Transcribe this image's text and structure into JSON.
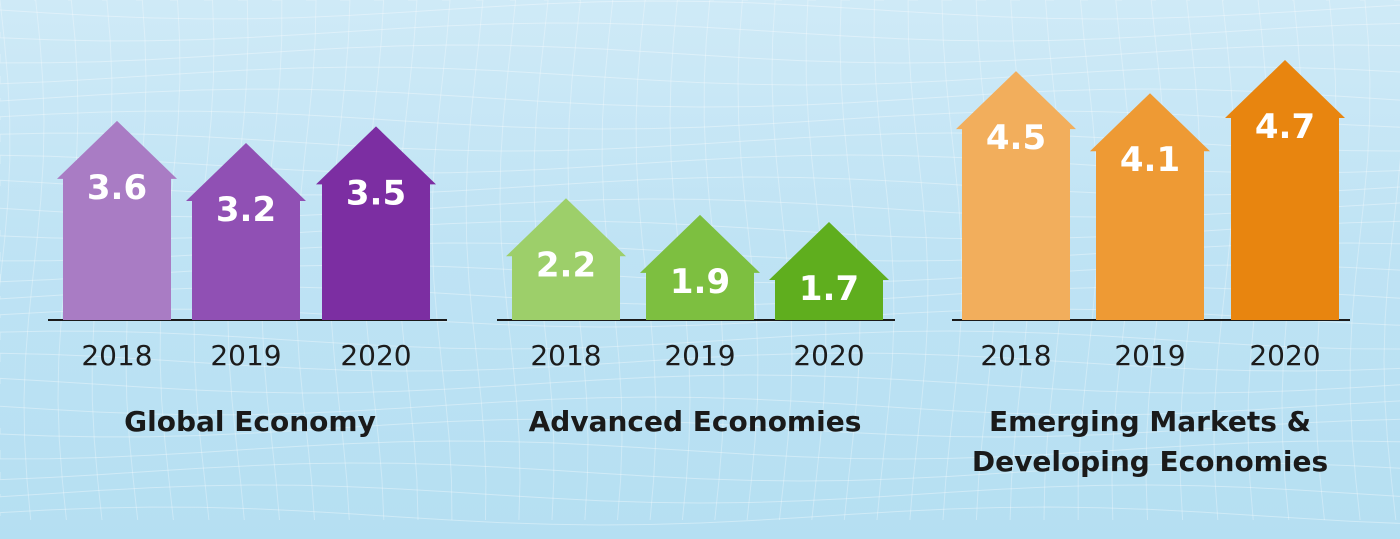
{
  "chart_data": [
    {
      "type": "bar",
      "title": "Global Economy",
      "categories": [
        "2018",
        "2019",
        "2020"
      ],
      "values": [
        3.6,
        3.2,
        3.5
      ],
      "value_labels": [
        "3.6",
        "3.2",
        "3.5"
      ],
      "colors": [
        "#a97cc4",
        "#9050b4",
        "#7c2ea2"
      ]
    },
    {
      "type": "bar",
      "title": "Advanced Economies",
      "categories": [
        "2018",
        "2019",
        "2020"
      ],
      "values": [
        2.2,
        1.9,
        1.7
      ],
      "value_labels": [
        "2.2",
        "1.9",
        "1.7"
      ],
      "colors": [
        "#9dcf6a",
        "#7dbf40",
        "#5fae1e"
      ]
    },
    {
      "type": "bar",
      "title_lines": [
        "Emerging Markets &",
        "Developing Economies"
      ],
      "categories": [
        "2018",
        "2019",
        "2020"
      ],
      "values": [
        4.5,
        4.1,
        4.7
      ],
      "value_labels": [
        "4.5",
        "4.1",
        "4.7"
      ],
      "colors": [
        "#f2ae5c",
        "#ee9a34",
        "#e8850f"
      ]
    }
  ]
}
